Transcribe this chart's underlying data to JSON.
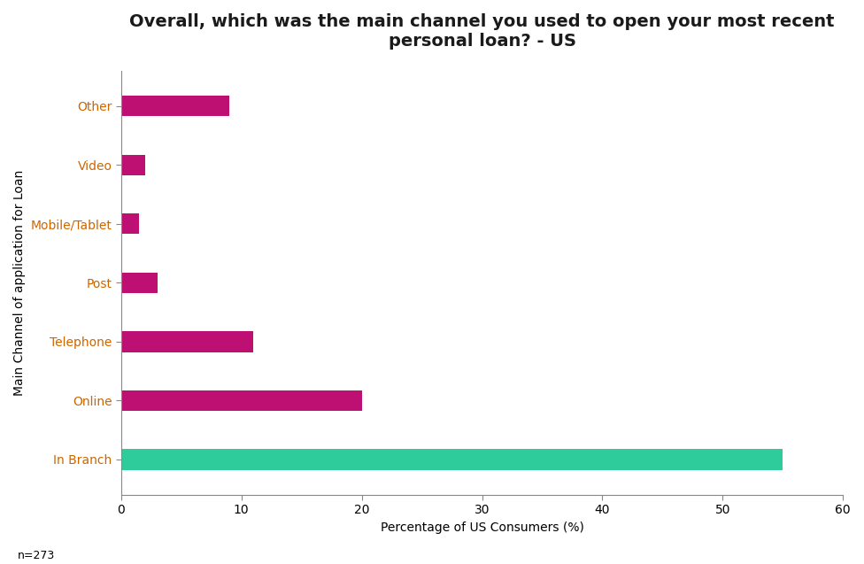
{
  "title": "Overall, which was the main channel you used to open your most recent\npersonal loan? - US",
  "categories": [
    "In Branch",
    "Online",
    "Telephone",
    "Post",
    "Mobile/Tablet",
    "Video",
    "Other"
  ],
  "values": [
    55,
    20,
    11,
    3,
    1.5,
    2,
    9
  ],
  "colors": [
    "#2ECC9A",
    "#BE0F72",
    "#BE0F72",
    "#BE0F72",
    "#BE0F72",
    "#BE0F72",
    "#BE0F72"
  ],
  "xlabel": "Percentage of US Consumers (%)",
  "ylabel": "Main Channel of application for Loan",
  "xlim": [
    0,
    60
  ],
  "xticks": [
    0,
    10,
    20,
    30,
    40,
    50,
    60
  ],
  "footnote": "n=273",
  "title_fontsize": 14,
  "label_fontsize": 10,
  "tick_fontsize": 10,
  "bar_height": 0.35,
  "background_color": "#FFFFFF",
  "label_color": "#CC6600",
  "title_color": "#1A1A1A"
}
